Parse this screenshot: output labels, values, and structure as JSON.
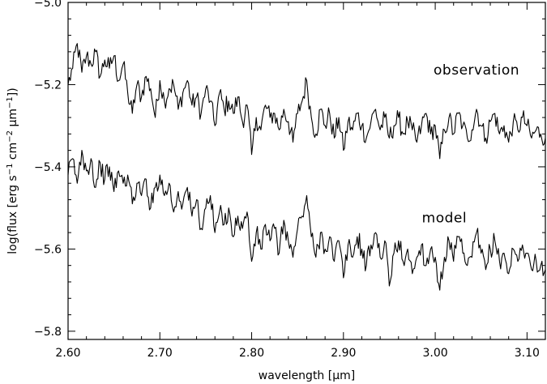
{
  "chart_data": {
    "type": "line",
    "xlabel": "wavelength [μm]",
    "ylabel_parts": [
      "log(flux [erg s",
      "−1",
      " cm",
      "−2",
      " μm",
      "−1",
      "])"
    ],
    "xlim": [
      2.6,
      3.12
    ],
    "ylim": [
      -5.82,
      -5.0
    ],
    "x_ticks": [
      2.6,
      2.7,
      2.8,
      2.9,
      3.0,
      3.1
    ],
    "x_tick_labels": [
      "2.60",
      "2.70",
      "2.80",
      "2.90",
      "3.00",
      "3.10"
    ],
    "y_ticks": [
      -5.0,
      -5.2,
      -5.4,
      -5.6,
      -5.8
    ],
    "y_tick_labels": [
      "−5.0",
      "−5.2",
      "−5.4",
      "−5.6",
      "−5.8"
    ],
    "grid": false,
    "series": [
      {
        "name": "observation",
        "x": [
          2.6,
          2.605,
          2.61,
          2.615,
          2.62,
          2.625,
          2.63,
          2.635,
          2.64,
          2.645,
          2.65,
          2.655,
          2.66,
          2.665,
          2.67,
          2.675,
          2.68,
          2.685,
          2.69,
          2.695,
          2.7,
          2.705,
          2.71,
          2.715,
          2.72,
          2.725,
          2.73,
          2.735,
          2.74,
          2.745,
          2.75,
          2.755,
          2.76,
          2.765,
          2.77,
          2.775,
          2.78,
          2.785,
          2.79,
          2.795,
          2.8,
          2.805,
          2.81,
          2.815,
          2.82,
          2.825,
          2.83,
          2.835,
          2.84,
          2.845,
          2.85,
          2.855,
          2.86,
          2.865,
          2.87,
          2.875,
          2.88,
          2.885,
          2.89,
          2.895,
          2.9,
          2.905,
          2.91,
          2.915,
          2.92,
          2.925,
          2.93,
          2.935,
          2.94,
          2.945,
          2.95,
          2.955,
          2.96,
          2.965,
          2.97,
          2.975,
          2.98,
          2.985,
          2.99,
          2.995,
          3.0,
          3.005,
          3.01,
          3.015,
          3.02,
          3.025,
          3.03,
          3.035,
          3.04,
          3.045,
          3.05,
          3.055,
          3.06,
          3.065,
          3.07,
          3.075,
          3.08,
          3.085,
          3.09,
          3.095,
          3.1,
          3.105,
          3.11,
          3.115,
          3.12
        ],
        "y": [
          -5.2,
          -5.16,
          -5.1,
          -5.17,
          -5.13,
          -5.15,
          -5.12,
          -5.18,
          -5.14,
          -5.16,
          -5.13,
          -5.19,
          -5.15,
          -5.22,
          -5.27,
          -5.2,
          -5.23,
          -5.18,
          -5.21,
          -5.28,
          -5.19,
          -5.24,
          -5.21,
          -5.2,
          -5.26,
          -5.22,
          -5.19,
          -5.25,
          -5.23,
          -5.27,
          -5.21,
          -5.24,
          -5.3,
          -5.22,
          -5.26,
          -5.24,
          -5.27,
          -5.23,
          -5.29,
          -5.25,
          -5.37,
          -5.28,
          -5.31,
          -5.25,
          -5.28,
          -5.27,
          -5.31,
          -5.26,
          -5.29,
          -5.34,
          -5.27,
          -5.24,
          -5.19,
          -5.28,
          -5.32,
          -5.26,
          -5.3,
          -5.27,
          -5.33,
          -5.28,
          -5.36,
          -5.29,
          -5.31,
          -5.27,
          -5.3,
          -5.33,
          -5.29,
          -5.26,
          -5.31,
          -5.28,
          -5.33,
          -5.3,
          -5.28,
          -5.32,
          -5.29,
          -5.31,
          -5.34,
          -5.3,
          -5.27,
          -5.32,
          -5.3,
          -5.38,
          -5.31,
          -5.28,
          -5.32,
          -5.27,
          -5.3,
          -5.33,
          -5.31,
          -5.26,
          -5.3,
          -5.33,
          -5.29,
          -5.27,
          -5.32,
          -5.3,
          -5.34,
          -5.29,
          -5.31,
          -5.28,
          -5.3,
          -5.33,
          -5.31,
          -5.32,
          -5.33
        ]
      },
      {
        "name": "model",
        "x": [
          2.6,
          2.605,
          2.61,
          2.615,
          2.62,
          2.625,
          2.63,
          2.635,
          2.64,
          2.645,
          2.65,
          2.655,
          2.66,
          2.665,
          2.67,
          2.675,
          2.68,
          2.685,
          2.69,
          2.695,
          2.7,
          2.705,
          2.71,
          2.715,
          2.72,
          2.725,
          2.73,
          2.735,
          2.74,
          2.745,
          2.75,
          2.755,
          2.76,
          2.765,
          2.77,
          2.775,
          2.78,
          2.785,
          2.79,
          2.795,
          2.8,
          2.805,
          2.81,
          2.815,
          2.82,
          2.825,
          2.83,
          2.835,
          2.84,
          2.845,
          2.85,
          2.855,
          2.86,
          2.865,
          2.87,
          2.875,
          2.88,
          2.885,
          2.89,
          2.895,
          2.9,
          2.905,
          2.91,
          2.915,
          2.92,
          2.925,
          2.93,
          2.935,
          2.94,
          2.945,
          2.95,
          2.955,
          2.96,
          2.965,
          2.97,
          2.975,
          2.98,
          2.985,
          2.99,
          2.995,
          3.0,
          3.005,
          3.01,
          3.015,
          3.02,
          3.025,
          3.03,
          3.035,
          3.04,
          3.045,
          3.05,
          3.055,
          3.06,
          3.065,
          3.07,
          3.075,
          3.08,
          3.085,
          3.09,
          3.095,
          3.1,
          3.105,
          3.11,
          3.115,
          3.12
        ],
        "y": [
          -5.42,
          -5.38,
          -5.44,
          -5.36,
          -5.41,
          -5.38,
          -5.45,
          -5.39,
          -5.43,
          -5.4,
          -5.46,
          -5.41,
          -5.44,
          -5.42,
          -5.49,
          -5.44,
          -5.47,
          -5.43,
          -5.5,
          -5.45,
          -5.42,
          -5.47,
          -5.44,
          -5.51,
          -5.46,
          -5.49,
          -5.45,
          -5.52,
          -5.48,
          -5.55,
          -5.5,
          -5.47,
          -5.56,
          -5.51,
          -5.54,
          -5.5,
          -5.57,
          -5.52,
          -5.55,
          -5.51,
          -5.63,
          -5.56,
          -5.6,
          -5.54,
          -5.58,
          -5.55,
          -5.61,
          -5.53,
          -5.58,
          -5.62,
          -5.55,
          -5.52,
          -5.47,
          -5.57,
          -5.62,
          -5.56,
          -5.6,
          -5.57,
          -5.63,
          -5.58,
          -5.67,
          -5.59,
          -5.62,
          -5.57,
          -5.6,
          -5.64,
          -5.59,
          -5.56,
          -5.62,
          -5.58,
          -5.69,
          -5.61,
          -5.58,
          -5.63,
          -5.6,
          -5.66,
          -5.62,
          -5.59,
          -5.64,
          -5.6,
          -5.62,
          -5.7,
          -5.62,
          -5.58,
          -5.63,
          -5.57,
          -5.61,
          -5.64,
          -5.62,
          -5.56,
          -5.61,
          -5.65,
          -5.6,
          -5.58,
          -5.63,
          -5.61,
          -5.66,
          -5.6,
          -5.63,
          -5.59,
          -5.61,
          -5.65,
          -5.63,
          -5.64,
          -5.65
        ]
      }
    ]
  }
}
